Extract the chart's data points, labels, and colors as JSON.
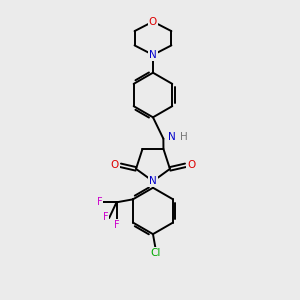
{
  "bg_color": "#ebebeb",
  "atom_colors": {
    "C": "#000000",
    "N": "#0000cc",
    "O": "#dd0000",
    "F": "#cc00cc",
    "Cl": "#00aa00",
    "H": "#777777"
  },
  "bond_color": "#000000",
  "bond_width": 1.4,
  "fig_width": 3.0,
  "fig_height": 3.0,
  "dpi": 100,
  "xlim": [
    0,
    10
  ],
  "ylim": [
    0,
    10
  ]
}
